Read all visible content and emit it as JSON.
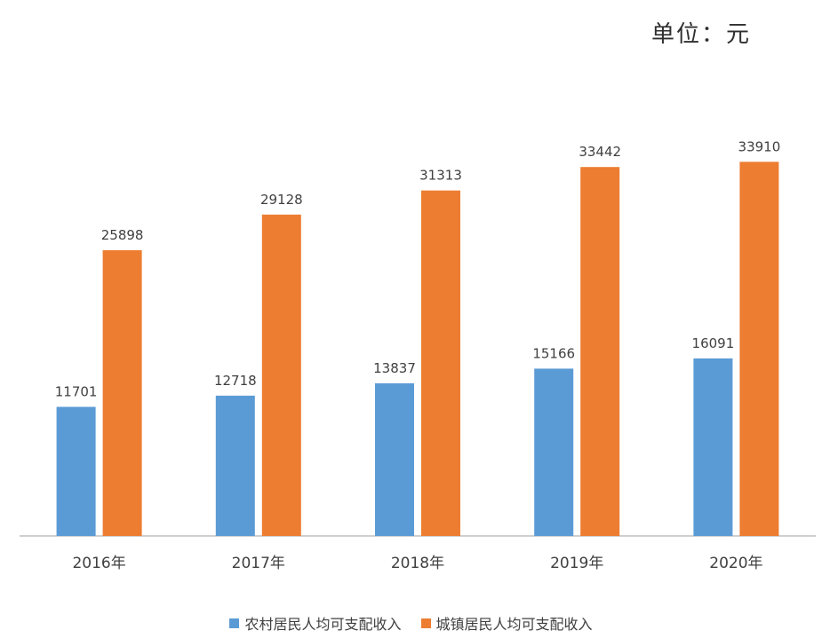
{
  "chart_data": {
    "type": "bar",
    "unit_label": "单位：元",
    "categories": [
      "2016年",
      "2017年",
      "2018年",
      "2019年",
      "2020年"
    ],
    "series": [
      {
        "name": "农村居民人均可支配收入",
        "values": [
          11701,
          12718,
          13837,
          15166,
          16091
        ],
        "color": "#5b9bd5"
      },
      {
        "name": "城镇居民人均可支配收入",
        "values": [
          25898,
          29128,
          31313,
          33442,
          33910
        ],
        "color": "#ed7d31"
      }
    ],
    "ylim": [
      0,
      40000
    ],
    "grid": false,
    "legend_position": "bottom"
  }
}
